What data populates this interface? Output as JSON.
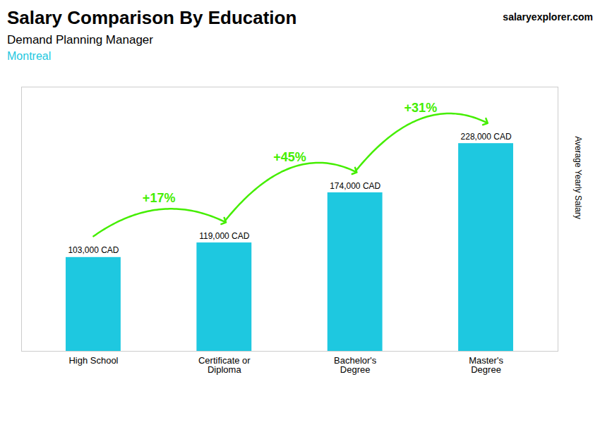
{
  "chart_data": {
    "type": "bar",
    "title": "Salary Comparison By Education",
    "subtitle": "Demand Planning Manager",
    "ylabel": "Average Yearly Salary",
    "categories": [
      "High School",
      "Certificate or\nDiploma",
      "Bachelor's\nDegree",
      "Master's\nDegree"
    ],
    "values": [
      103000,
      119000,
      174000,
      228000
    ],
    "value_labels": [
      "103,000 CAD",
      "119,000 CAD",
      "174,000 CAD",
      "228,000 CAD"
    ],
    "data_labels": true,
    "color": "#1ec8e0",
    "ylim": [
      0,
      290000
    ],
    "tick_labels": "x",
    "grid": false,
    "annotations": [
      {
        "text": "Montreal"
      },
      {
        "text": "salaryexplorer.com"
      },
      {
        "text": "+17%",
        "from": "High School",
        "to": "Certificate or\nDiploma",
        "color": "#44ee00"
      },
      {
        "text": "+45%",
        "from": "Certificate or\nDiploma",
        "to": "Bachelor's\nDegree",
        "color": "#44ee00"
      },
      {
        "text": "+31%",
        "from": "Bachelor's\nDegree",
        "to": "Master's\nDegree",
        "color": "#44ee00"
      }
    ]
  }
}
